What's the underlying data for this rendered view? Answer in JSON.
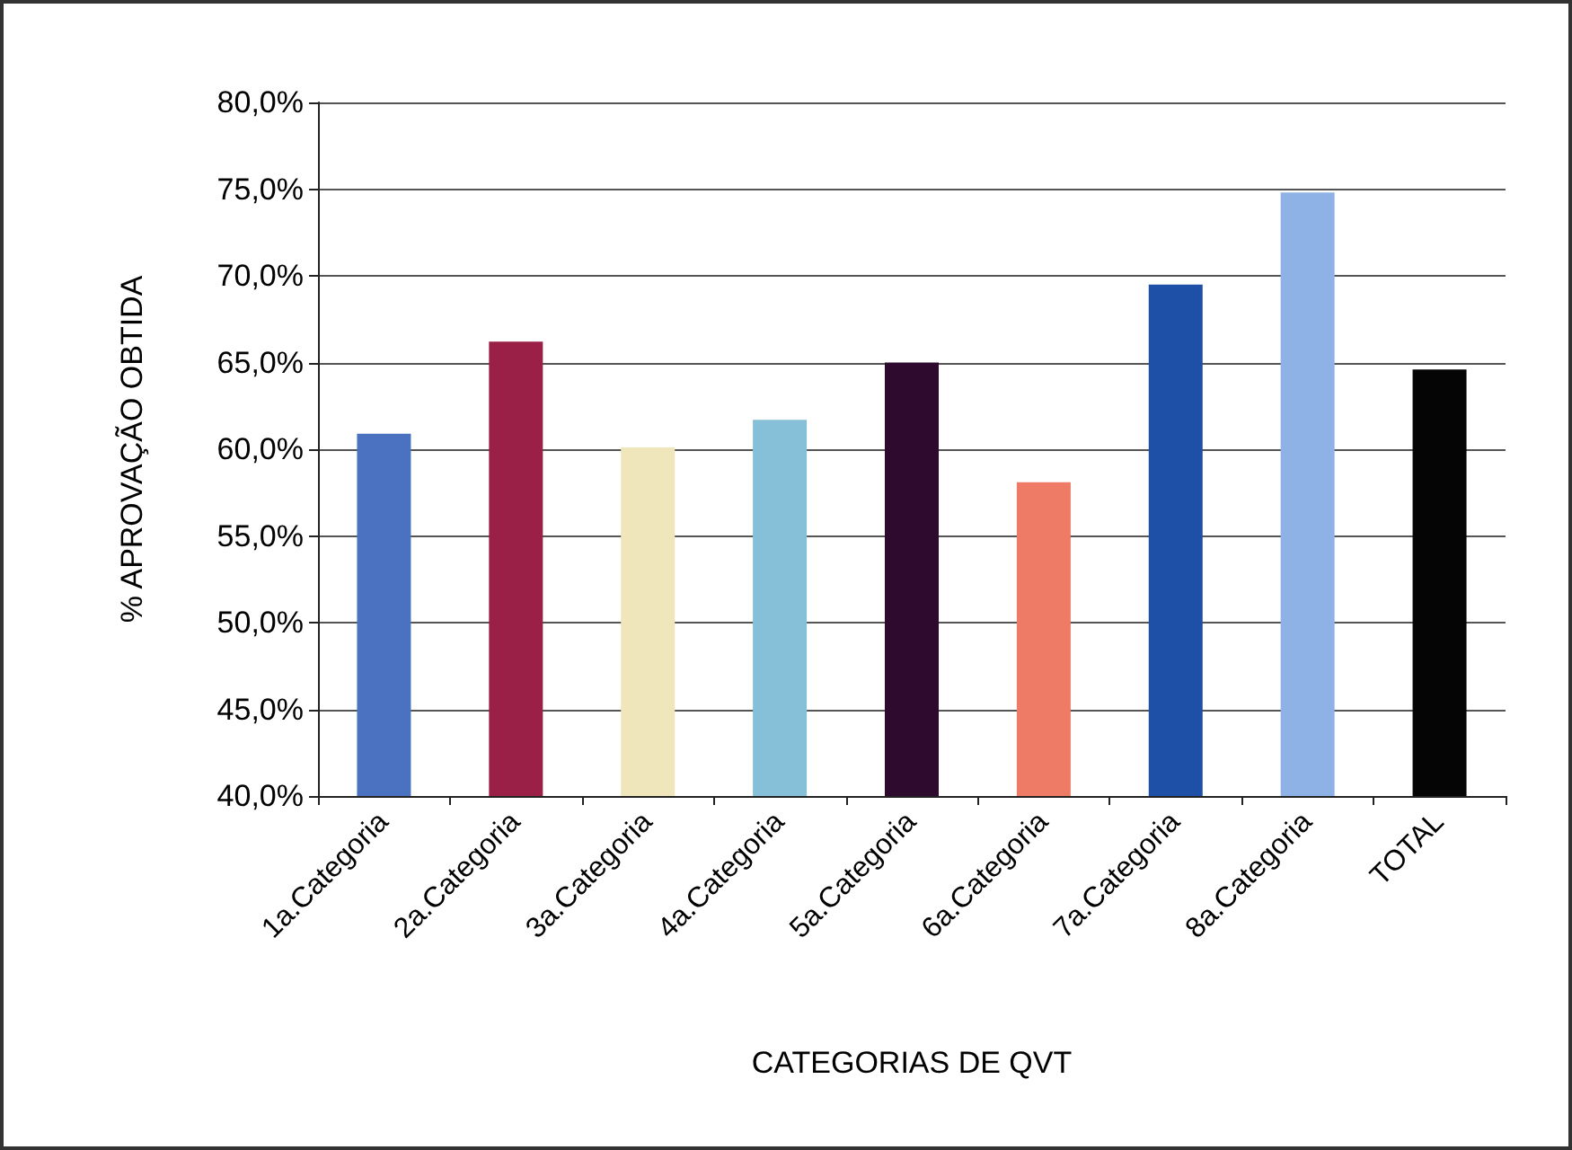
{
  "chart_data": {
    "type": "bar",
    "xlabel": "CATEGORIAS DE QVT",
    "ylabel": "% APROVAÇÃO OBTIDA",
    "categories": [
      "1a.Categoria",
      "2a.Categoria",
      "3a.Categoria",
      "4a.Categoria",
      "5a.Categoria",
      "6a.Categoria",
      "7a.Categoria",
      "8a.Categoria",
      "TOTAL"
    ],
    "values": [
      60.9,
      66.2,
      60.1,
      61.7,
      65.0,
      58.1,
      69.5,
      74.8,
      64.6
    ],
    "colors": [
      "#4a72c0",
      "#9b2048",
      "#efe6bc",
      "#86c0d8",
      "#2e0a2e",
      "#ee7b65",
      "#1e50a8",
      "#8fb2e6",
      "#050505"
    ],
    "ylim": [
      40,
      80
    ],
    "yticks": [
      {
        "value": 40,
        "label": "40,0%"
      },
      {
        "value": 45,
        "label": "45,0%"
      },
      {
        "value": 50,
        "label": "50,0%"
      },
      {
        "value": 55,
        "label": "55,0%"
      },
      {
        "value": 60,
        "label": "60,0%"
      },
      {
        "value": 65,
        "label": "65,0%"
      },
      {
        "value": 70,
        "label": "70,0%"
      },
      {
        "value": 75,
        "label": "75,0%"
      },
      {
        "value": 80,
        "label": "80,0%"
      }
    ],
    "grid": "y"
  }
}
